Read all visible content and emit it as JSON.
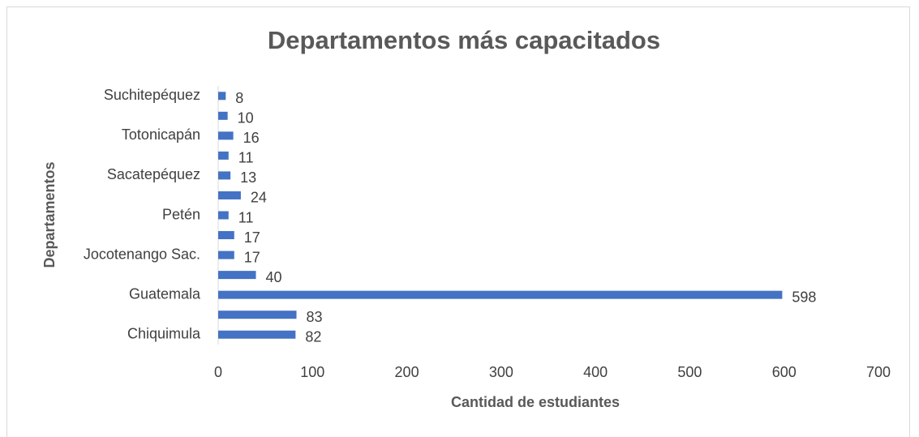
{
  "chart_data": {
    "type": "barh",
    "title": "Departamentos más capacitados",
    "x_label": "Cantidad de estudiantes",
    "y_label": "Departamentos",
    "categories": [
      "Chiquimula",
      null,
      "Guatemala",
      null,
      "Jocotenango Sac.",
      null,
      "Petén",
      null,
      "Sacatepéquez",
      null,
      "Totonicapán",
      null,
      "Suchitepéquez"
    ],
    "values": [
      82,
      83,
      598,
      40,
      17,
      17,
      11,
      24,
      13,
      11,
      16,
      10,
      8
    ],
    "color": "#4472c4",
    "xlim": [
      0,
      700
    ],
    "xticks": [
      0,
      100,
      200,
      300,
      400,
      500,
      600,
      700
    ],
    "grid": false
  }
}
